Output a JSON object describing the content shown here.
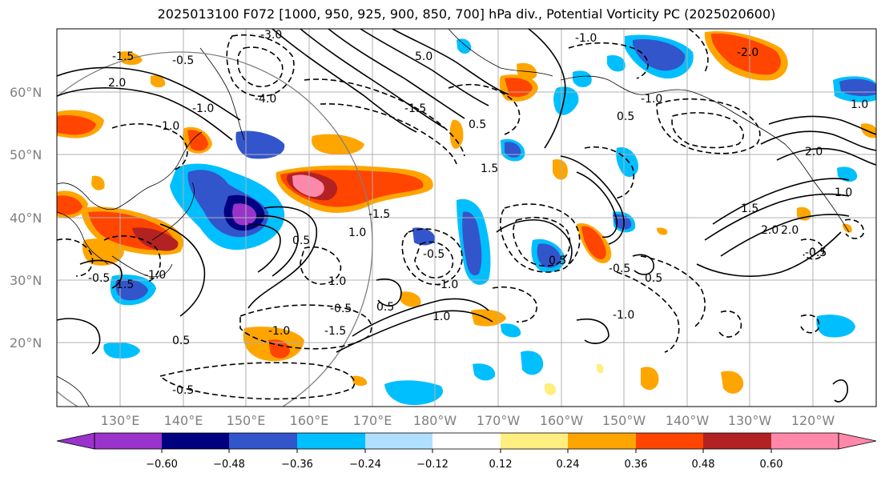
{
  "title": "2025013100 F072 [1000, 950, 925, 900, 850, 700] hPa div., Potential Vorticity PC (2025020600)",
  "map": {
    "lat_labels": [
      "60°N",
      "50°N",
      "40°N",
      "30°N",
      "20°N"
    ],
    "lon_labels": [
      "130°E",
      "140°E",
      "150°E",
      "160°E",
      "170°E",
      "180°W",
      "170°W",
      "160°W",
      "150°W",
      "140°W",
      "130°W",
      "120°W"
    ],
    "contour_labels": [
      "-3.0",
      "-1.5",
      "-0.5",
      "2.0",
      "1.0",
      "-1.0",
      "-4.0",
      "5.0",
      "-1.5",
      "0.5",
      "1.5",
      "-1.0",
      "-1.0",
      "0.5",
      "2.0",
      "1.0",
      "1.5",
      "2.0",
      "-0.5",
      "1.0",
      "-0.5",
      "-1.0",
      "0.5",
      "1.0",
      "-0.5",
      "-1.5",
      "-1.0",
      "0.5",
      "-0.5",
      "1.0",
      "0.5",
      "1.0",
      "0.5",
      "-0.5",
      "-1.0",
      "0.5",
      "-1.5",
      "-1.0",
      "-0.5",
      "1.5",
      "2.0",
      "0.5",
      "-2.0"
    ]
  },
  "colorbar": {
    "colors": [
      "#9933cc",
      "#000080",
      "#3355cc",
      "#00bfff",
      "#b0e0ff",
      "#ffffff",
      "#ffee80",
      "#ffa500",
      "#ff4500",
      "#b22222",
      "#ff88aa"
    ],
    "ticks": [
      "−0.60",
      "−0.48",
      "−0.36",
      "−0.24",
      "−0.12",
      "0.12",
      "0.24",
      "0.36",
      "0.48",
      "0.60"
    ]
  },
  "colors": {
    "negative_dark": "#000080",
    "negative_mid": "#3355cc",
    "negative_light": "#00bfff",
    "positive_light": "#ffee80",
    "positive_mid": "#ffa500",
    "positive_strong": "#ff4500",
    "positive_max": "#ff88aa"
  }
}
